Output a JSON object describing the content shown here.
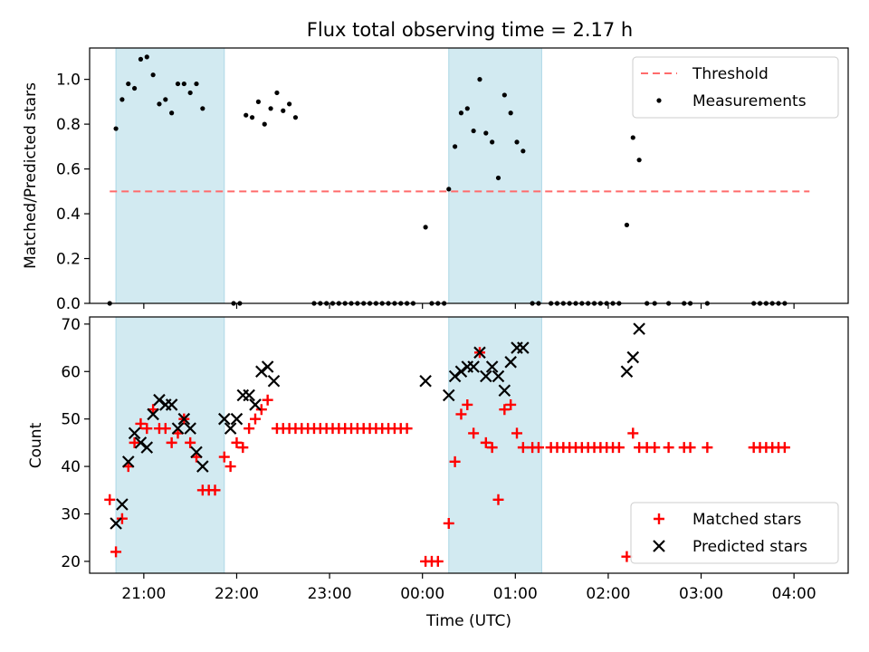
{
  "title": "Flux total observing time = 2.17 h",
  "colors": {
    "band": "#add8e6",
    "threshold": "#ff6b6b",
    "matched": "#ff0000",
    "predicted": "#000000",
    "measurement": "#000000"
  },
  "chart_data": [
    {
      "type": "scatter",
      "panel": "top",
      "title": "Flux total observing time = 2.17 h",
      "xlabel": "",
      "ylabel": "Matched/Predicted stars",
      "xlim": [
        "20:25",
        "04:35"
      ],
      "ylim": [
        0,
        1.14
      ],
      "yticks": [
        0.0,
        0.2,
        0.4,
        0.6,
        0.8,
        1.0
      ],
      "ytick_labels": [
        "0.0",
        "0.2",
        "0.4",
        "0.6",
        "0.8",
        "1.0"
      ],
      "legend_position": "top-right",
      "shaded_intervals": [
        [
          "20:42",
          "21:52"
        ],
        [
          "00:17",
          "01:17"
        ]
      ],
      "series": [
        {
          "name": "Threshold",
          "kind": "dashed-line",
          "x": [
            "20:38",
            "04:10"
          ],
          "y": [
            0.5,
            0.5
          ]
        },
        {
          "name": "Measurements",
          "kind": "dots",
          "points": [
            [
              "20:38",
              0.0
            ],
            [
              "20:42",
              0.78
            ],
            [
              "20:46",
              0.91
            ],
            [
              "20:50",
              0.98
            ],
            [
              "20:54",
              0.96
            ],
            [
              "20:58",
              1.09
            ],
            [
              "21:02",
              1.1
            ],
            [
              "21:06",
              1.02
            ],
            [
              "21:10",
              0.89
            ],
            [
              "21:14",
              0.91
            ],
            [
              "21:18",
              0.85
            ],
            [
              "21:22",
              0.98
            ],
            [
              "21:26",
              0.98
            ],
            [
              "21:30",
              0.94
            ],
            [
              "21:34",
              0.98
            ],
            [
              "21:38",
              0.87
            ],
            [
              "21:58",
              0.0
            ],
            [
              "22:02",
              0.0
            ],
            [
              "22:06",
              0.84
            ],
            [
              "22:10",
              0.83
            ],
            [
              "22:14",
              0.9
            ],
            [
              "22:18",
              0.8
            ],
            [
              "22:22",
              0.87
            ],
            [
              "22:26",
              0.94
            ],
            [
              "22:30",
              0.86
            ],
            [
              "22:34",
              0.89
            ],
            [
              "22:38",
              0.83
            ],
            [
              "22:50",
              0.0
            ],
            [
              "22:54",
              0.0
            ],
            [
              "22:58",
              0.0
            ],
            [
              "23:02",
              0.0
            ],
            [
              "23:06",
              0.0
            ],
            [
              "23:10",
              0.0
            ],
            [
              "23:14",
              0.0
            ],
            [
              "23:18",
              0.0
            ],
            [
              "23:22",
              0.0
            ],
            [
              "23:26",
              0.0
            ],
            [
              "23:30",
              0.0
            ],
            [
              "23:34",
              0.0
            ],
            [
              "23:38",
              0.0
            ],
            [
              "23:42",
              0.0
            ],
            [
              "23:46",
              0.0
            ],
            [
              "23:50",
              0.0
            ],
            [
              "23:54",
              0.0
            ],
            [
              "00:02",
              0.34
            ],
            [
              "00:06",
              0.0
            ],
            [
              "00:10",
              0.0
            ],
            [
              "00:14",
              0.0
            ],
            [
              "00:17",
              0.51
            ],
            [
              "00:21",
              0.7
            ],
            [
              "00:25",
              0.85
            ],
            [
              "00:29",
              0.87
            ],
            [
              "00:33",
              0.77
            ],
            [
              "00:37",
              1.0
            ],
            [
              "00:41",
              0.76
            ],
            [
              "00:45",
              0.72
            ],
            [
              "00:49",
              0.56
            ],
            [
              "00:53",
              0.93
            ],
            [
              "00:57",
              0.85
            ],
            [
              "01:01",
              0.72
            ],
            [
              "01:05",
              0.68
            ],
            [
              "01:11",
              0.0
            ],
            [
              "01:15",
              0.0
            ],
            [
              "01:23",
              0.0
            ],
            [
              "01:27",
              0.0
            ],
            [
              "01:31",
              0.0
            ],
            [
              "01:35",
              0.0
            ],
            [
              "01:39",
              0.0
            ],
            [
              "01:43",
              0.0
            ],
            [
              "01:47",
              0.0
            ],
            [
              "01:51",
              0.0
            ],
            [
              "01:55",
              0.0
            ],
            [
              "01:59",
              0.0
            ],
            [
              "02:03",
              0.0
            ],
            [
              "02:07",
              0.0
            ],
            [
              "02:12",
              0.35
            ],
            [
              "02:16",
              0.74
            ],
            [
              "02:20",
              0.64
            ],
            [
              "02:25",
              0.0
            ],
            [
              "02:30",
              0.0
            ],
            [
              "02:39",
              0.0
            ],
            [
              "02:49",
              0.0
            ],
            [
              "02:53",
              0.0
            ],
            [
              "03:04",
              0.0
            ],
            [
              "03:34",
              0.0
            ],
            [
              "03:38",
              0.0
            ],
            [
              "03:42",
              0.0
            ],
            [
              "03:46",
              0.0
            ],
            [
              "03:50",
              0.0
            ],
            [
              "03:54",
              0.0
            ]
          ]
        }
      ]
    },
    {
      "type": "scatter",
      "panel": "bottom",
      "xlabel": "Time (UTC)",
      "ylabel": "Count",
      "xlim": [
        "20:25",
        "04:35"
      ],
      "ylim": [
        17.5,
        71.5
      ],
      "xticks": [
        "21:00",
        "22:00",
        "23:00",
        "00:00",
        "01:00",
        "02:00",
        "03:00",
        "04:00"
      ],
      "yticks": [
        20,
        30,
        40,
        50,
        60,
        70
      ],
      "ytick_labels": [
        "20",
        "30",
        "40",
        "50",
        "60",
        "70"
      ],
      "legend_position": "bottom-right",
      "shaded_intervals": [
        [
          "20:42",
          "21:52"
        ],
        [
          "00:17",
          "01:17"
        ]
      ],
      "series": [
        {
          "name": "Matched stars",
          "marker": "+",
          "points": [
            [
              "20:38",
              33
            ],
            [
              "20:42",
              22
            ],
            [
              "20:46",
              29
            ],
            [
              "20:50",
              40
            ],
            [
              "20:54",
              45
            ],
            [
              "20:58",
              49
            ],
            [
              "21:02",
              48
            ],
            [
              "21:06",
              52
            ],
            [
              "21:10",
              48
            ],
            [
              "21:14",
              48
            ],
            [
              "21:18",
              45
            ],
            [
              "21:22",
              47
            ],
            [
              "21:26",
              50
            ],
            [
              "21:30",
              45
            ],
            [
              "21:34",
              42
            ],
            [
              "21:38",
              35
            ],
            [
              "21:42",
              35
            ],
            [
              "21:46",
              35
            ],
            [
              "21:52",
              42
            ],
            [
              "21:56",
              40
            ],
            [
              "22:00",
              45
            ],
            [
              "22:04",
              44
            ],
            [
              "22:08",
              48
            ],
            [
              "22:12",
              50
            ],
            [
              "22:16",
              52
            ],
            [
              "22:20",
              54
            ],
            [
              "22:26",
              48
            ],
            [
              "22:30",
              48
            ],
            [
              "22:34",
              48
            ],
            [
              "22:38",
              48
            ],
            [
              "22:42",
              48
            ],
            [
              "22:46",
              48
            ],
            [
              "22:50",
              48
            ],
            [
              "22:54",
              48
            ],
            [
              "22:58",
              48
            ],
            [
              "23:02",
              48
            ],
            [
              "23:06",
              48
            ],
            [
              "23:10",
              48
            ],
            [
              "23:14",
              48
            ],
            [
              "23:18",
              48
            ],
            [
              "23:22",
              48
            ],
            [
              "23:26",
              48
            ],
            [
              "23:30",
              48
            ],
            [
              "23:34",
              48
            ],
            [
              "23:38",
              48
            ],
            [
              "23:42",
              48
            ],
            [
              "23:46",
              48
            ],
            [
              "23:50",
              48
            ],
            [
              "00:02",
              20
            ],
            [
              "00:06",
              20
            ],
            [
              "00:10",
              20
            ],
            [
              "00:17",
              28
            ],
            [
              "00:21",
              41
            ],
            [
              "00:25",
              51
            ],
            [
              "00:29",
              53
            ],
            [
              "00:33",
              47
            ],
            [
              "00:37",
              64
            ],
            [
              "00:41",
              45
            ],
            [
              "00:45",
              44
            ],
            [
              "00:49",
              33
            ],
            [
              "00:53",
              52
            ],
            [
              "00:57",
              53
            ],
            [
              "01:01",
              47
            ],
            [
              "01:05",
              44
            ],
            [
              "01:11",
              44
            ],
            [
              "01:15",
              44
            ],
            [
              "01:23",
              44
            ],
            [
              "01:27",
              44
            ],
            [
              "01:31",
              44
            ],
            [
              "01:35",
              44
            ],
            [
              "01:39",
              44
            ],
            [
              "01:43",
              44
            ],
            [
              "01:47",
              44
            ],
            [
              "01:51",
              44
            ],
            [
              "01:55",
              44
            ],
            [
              "01:59",
              44
            ],
            [
              "02:03",
              44
            ],
            [
              "02:07",
              44
            ],
            [
              "02:12",
              21
            ],
            [
              "02:16",
              47
            ],
            [
              "02:20",
              44
            ],
            [
              "02:25",
              44
            ],
            [
              "02:30",
              44
            ],
            [
              "02:39",
              44
            ],
            [
              "02:49",
              44
            ],
            [
              "02:53",
              44
            ],
            [
              "03:04",
              44
            ],
            [
              "03:34",
              44
            ],
            [
              "03:38",
              44
            ],
            [
              "03:42",
              44
            ],
            [
              "03:46",
              44
            ],
            [
              "03:50",
              44
            ],
            [
              "03:54",
              44
            ]
          ]
        },
        {
          "name": "Predicted stars",
          "marker": "x",
          "points": [
            [
              "20:42",
              28
            ],
            [
              "20:46",
              32
            ],
            [
              "20:50",
              41
            ],
            [
              "20:54",
              47
            ],
            [
              "20:58",
              45
            ],
            [
              "21:02",
              44
            ],
            [
              "21:06",
              51
            ],
            [
              "21:10",
              54
            ],
            [
              "21:14",
              53
            ],
            [
              "21:18",
              53
            ],
            [
              "21:22",
              48
            ],
            [
              "21:26",
              50
            ],
            [
              "21:30",
              48
            ],
            [
              "21:34",
              43
            ],
            [
              "21:38",
              40
            ],
            [
              "21:52",
              50
            ],
            [
              "21:56",
              48
            ],
            [
              "22:00",
              50
            ],
            [
              "22:04",
              55
            ],
            [
              "22:08",
              55
            ],
            [
              "22:12",
              53
            ],
            [
              "22:16",
              60
            ],
            [
              "22:20",
              61
            ],
            [
              "22:24",
              58
            ],
            [
              "00:02",
              58
            ],
            [
              "00:17",
              55
            ],
            [
              "00:21",
              59
            ],
            [
              "00:25",
              60
            ],
            [
              "00:29",
              61
            ],
            [
              "00:33",
              61
            ],
            [
              "00:37",
              64
            ],
            [
              "00:41",
              59
            ],
            [
              "00:45",
              61
            ],
            [
              "00:49",
              59
            ],
            [
              "00:53",
              56
            ],
            [
              "00:57",
              62
            ],
            [
              "01:01",
              65
            ],
            [
              "01:05",
              65
            ],
            [
              "02:12",
              60
            ],
            [
              "02:16",
              63
            ],
            [
              "02:20",
              69
            ]
          ]
        }
      ]
    }
  ]
}
